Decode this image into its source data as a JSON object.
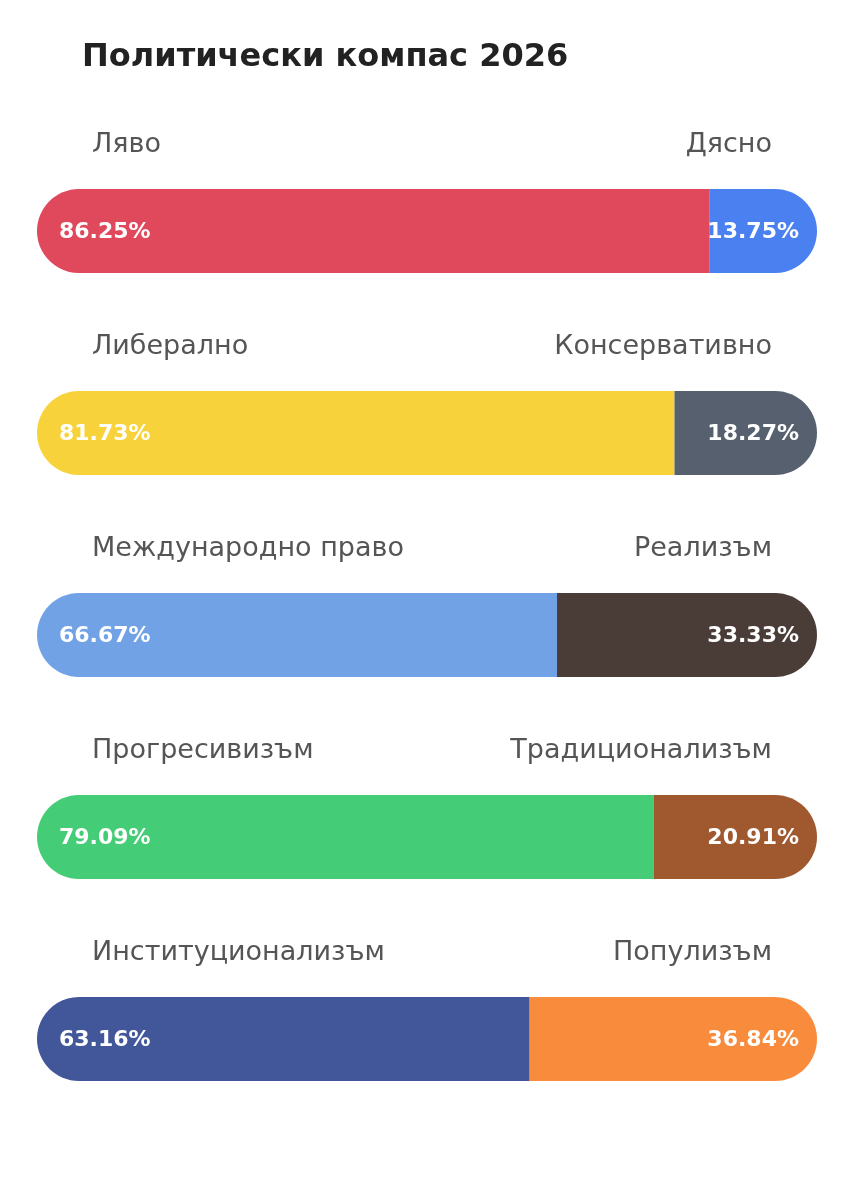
{
  "chart_data": [
    {
      "type": "bar",
      "title": "Политически компас 2026",
      "orientation": "horizontal",
      "stacked": true,
      "legend": false,
      "categories": [
        null
      ],
      "series": [
        {
          "name": "Ляво",
          "color": "#e0485c",
          "values": [
            86.25
          ],
          "value_labels": [
            "86.25%"
          ]
        },
        {
          "name": "Дясно",
          "color": "#4a80f0",
          "values": [
            13.75
          ],
          "value_labels": [
            "13.75%"
          ]
        }
      ]
    },
    {
      "type": "bar",
      "orientation": "horizontal",
      "stacked": true,
      "legend": false,
      "categories": [
        null
      ],
      "series": [
        {
          "name": "Либерално",
          "color": "#f8d23a",
          "values": [
            81.73
          ],
          "value_labels": [
            "81.73%"
          ]
        },
        {
          "name": "Консервативно",
          "color": "#56606e",
          "values": [
            18.27
          ],
          "value_labels": [
            "18.27%"
          ]
        }
      ]
    },
    {
      "type": "bar",
      "orientation": "horizontal",
      "stacked": true,
      "legend": false,
      "categories": [
        null
      ],
      "series": [
        {
          "name": "Международно право",
          "color": "#72a2e6",
          "values": [
            66.67
          ],
          "value_labels": [
            "66.67%"
          ]
        },
        {
          "name": "Реализъм",
          "color": "#4a3d38",
          "values": [
            33.33
          ],
          "value_labels": [
            "33.33%"
          ]
        }
      ]
    },
    {
      "type": "bar",
      "orientation": "horizontal",
      "stacked": true,
      "legend": false,
      "categories": [
        null
      ],
      "series": [
        {
          "name": "Прогресивизъм",
          "color": "#44cc76",
          "values": [
            79.09
          ],
          "value_labels": [
            "79.09%"
          ]
        },
        {
          "name": "Традиционализъм",
          "color": "#a0582e",
          "values": [
            20.91
          ],
          "value_labels": [
            "20.91%"
          ]
        }
      ]
    },
    {
      "type": "bar",
      "orientation": "horizontal",
      "stacked": true,
      "legend": false,
      "categories": [
        null
      ],
      "series": [
        {
          "name": "Институционализъм",
          "color": "#42579a",
          "values": [
            63.16
          ],
          "value_labels": [
            "63.16%"
          ]
        },
        {
          "name": "Популизъм",
          "color": "#f88c3c",
          "values": [
            36.84
          ],
          "value_labels": [
            "36.84%"
          ]
        }
      ]
    }
  ]
}
